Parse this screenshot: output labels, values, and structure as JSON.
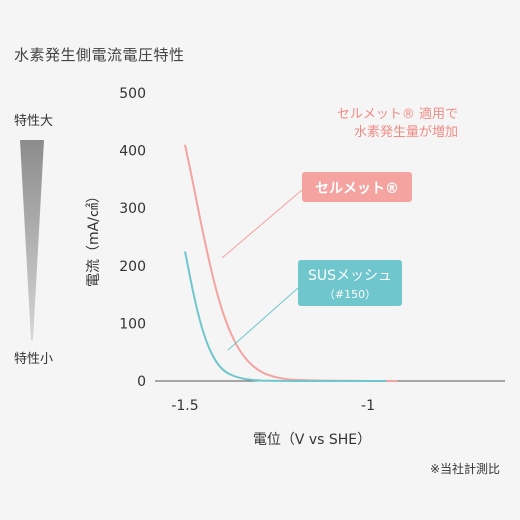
{
  "title": "水素発生側電流電圧特性",
  "level_indicator": {
    "top_label": "特性大",
    "bottom_label": "特性小"
  },
  "footnote": "※当社計測比",
  "colors": {
    "selmet": "#f4a3a0",
    "sus": "#6fc6cc",
    "annotation_text": "#f08c86",
    "axis": "#555555",
    "background": "#f5f5f5"
  },
  "annotation": {
    "line1": "セルメット® 適用で",
    "line2": "水素発生量が増加"
  },
  "chart_data": {
    "type": "line",
    "xlabel": "電位（V vs SHE）",
    "ylabel": "電流（mA/㎠）",
    "xlim": [
      -1.5,
      -0.9
    ],
    "ylim": [
      0,
      500
    ],
    "x_ticks": [
      {
        "value": -1.5,
        "label": "-1.5"
      },
      {
        "value": -1.0,
        "label": "-1"
      }
    ],
    "y_ticks": [
      {
        "value": 0,
        "label": "0"
      },
      {
        "value": 100,
        "label": "100"
      },
      {
        "value": 200,
        "label": "200"
      },
      {
        "value": 300,
        "label": "300"
      },
      {
        "value": 400,
        "label": "400"
      },
      {
        "value": 500,
        "label": "500"
      }
    ],
    "grid": false,
    "series": [
      {
        "name": "セルメット®",
        "callout": "セルメット®",
        "color": "#f4a3a0",
        "x": [
          -1.5,
          -1.48,
          -1.46,
          -1.44,
          -1.42,
          -1.4,
          -1.38,
          -1.36,
          -1.34,
          -1.32,
          -1.3,
          -1.28,
          -1.26,
          -1.24,
          -1.22,
          -1.2,
          -1.15,
          -1.1,
          -1.05,
          -1.0,
          -0.95,
          -0.92
        ],
        "y": [
          410,
          350,
          285,
          225,
          170,
          125,
          90,
          63,
          43,
          29,
          19,
          12,
          8,
          5,
          3,
          2,
          1,
          0.5,
          0.2,
          0,
          0,
          0
        ]
      },
      {
        "name": "SUSメッシュ",
        "callout": "SUSメッシュ",
        "callout_sub": "（#150）",
        "color": "#6fc6cc",
        "x": [
          -1.5,
          -1.48,
          -1.46,
          -1.44,
          -1.42,
          -1.4,
          -1.38,
          -1.36,
          -1.34,
          -1.32,
          -1.3,
          -1.28,
          -1.25,
          -1.2,
          -1.15,
          -1.1,
          -1.05,
          -1.0,
          -0.95
        ],
        "y": [
          225,
          160,
          105,
          65,
          38,
          21,
          12,
          7,
          4,
          2,
          1,
          0.5,
          0.2,
          0,
          0,
          0,
          0,
          0,
          0
        ]
      }
    ]
  }
}
